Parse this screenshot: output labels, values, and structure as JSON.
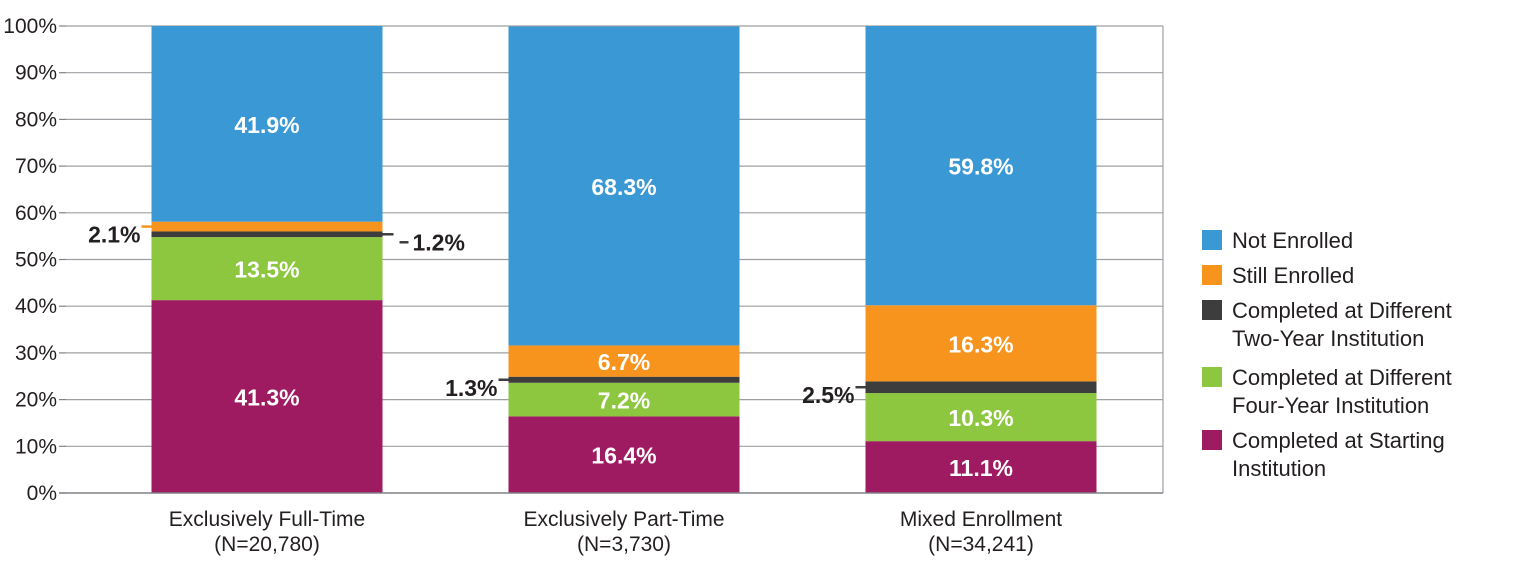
{
  "chart_data": {
    "type": "bar",
    "stacked": true,
    "categories": [
      [
        "Exclusively Full-Time",
        "(N=20,780)"
      ],
      [
        "Exclusively Part-Time",
        "(N=3,730)"
      ],
      [
        "Mixed Enrollment",
        "(N=34,241)"
      ]
    ],
    "series": [
      {
        "name": [
          "Completed at Starting",
          "Institution"
        ],
        "color": "#9e1b62",
        "values": [
          41.3,
          16.4,
          11.1
        ],
        "labels": [
          "41.3%",
          "16.4%",
          "11.1%"
        ]
      },
      {
        "name": [
          "Completed at Different",
          "Four-Year Institution"
        ],
        "color": "#8dc63f",
        "values": [
          13.5,
          7.2,
          10.3
        ],
        "labels": [
          "13.5%",
          "7.2%",
          "10.3%"
        ]
      },
      {
        "name": [
          "Completed at Different",
          "Two-Year Institution"
        ],
        "color": "#3d3d3d",
        "values": [
          1.2,
          1.3,
          2.5
        ],
        "labels": [
          "1.2%",
          "1.3%",
          "2.5%"
        ]
      },
      {
        "name": [
          "Still Enrolled"
        ],
        "color": "#f7941d",
        "values": [
          2.1,
          6.7,
          16.3
        ],
        "labels": [
          "2.1%",
          "6.7%",
          "16.3%"
        ]
      },
      {
        "name": [
          "Not Enrolled"
        ],
        "color": "#3a98d4",
        "values": [
          41.9,
          68.3,
          59.8
        ],
        "labels": [
          "41.9%",
          "68.3%",
          "59.8%"
        ]
      }
    ],
    "yticks": [
      "0%",
      "10%",
      "20%",
      "30%",
      "40%",
      "50%",
      "60%",
      "70%",
      "80%",
      "90%",
      "100%"
    ],
    "ylim": [
      0,
      100
    ],
    "grid": true,
    "legend_position": "right",
    "legend_order": [
      4,
      3,
      2,
      1,
      0
    ]
  }
}
